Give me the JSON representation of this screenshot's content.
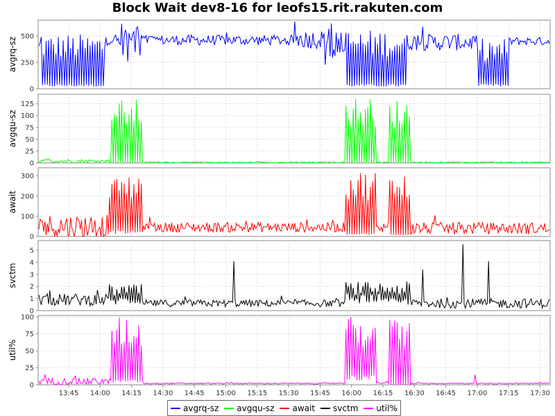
{
  "chart_data": {
    "type": "line",
    "title": "Block Wait dev8-16 for leofs15.rit.rakuten.com",
    "x_tick_labels": [
      "13:45",
      "14:00",
      "14:15",
      "14:30",
      "14:45",
      "15:00",
      "15:15",
      "15:30",
      "15:45",
      "16:00",
      "16:15",
      "16:30",
      "16:45",
      "17:00",
      "17:15",
      "17:30"
    ],
    "grid": true,
    "legend_position": "bottom",
    "panels": [
      {
        "name": "avgrq-sz",
        "ylabel": "avgrq-sz",
        "color": "#0000ff",
        "yticks": [
          0,
          250,
          500
        ],
        "ylim": [
          0,
          650
        ],
        "profile": [
          [
            0,
            0,
            "burst",
            [
              30,
              480
            ]
          ],
          [
            0.005,
            0.13,
            "burst",
            [
              30,
              520
            ]
          ],
          [
            0.135,
            0.155,
            "base",
            [
              460,
              40
            ]
          ],
          [
            0.155,
            0.205,
            "burst",
            [
              420,
              630
            ]
          ],
          [
            0.205,
            0.5,
            "base",
            [
              460,
              50
            ]
          ],
          [
            0.5,
            0.56,
            "base",
            [
              470,
              90
            ]
          ],
          [
            0.56,
            0.6,
            "burst",
            [
              350,
              630
            ]
          ],
          [
            0.6,
            0.72,
            "burst",
            [
              30,
              560
            ]
          ],
          [
            0.72,
            0.86,
            "base",
            [
              440,
              80
            ]
          ],
          [
            0.86,
            0.92,
            "burst",
            [
              30,
              480
            ]
          ],
          [
            0.92,
            1,
            "base",
            [
              450,
              40
            ]
          ]
        ]
      },
      {
        "name": "avgqu-sz",
        "ylabel": "avgqu-sz",
        "color": "#00ff00",
        "yticks": [
          0,
          25,
          50,
          75,
          100,
          125
        ],
        "ylim": [
          0,
          145
        ],
        "profile": [
          [
            0,
            0.14,
            "base",
            [
              4,
              4
            ]
          ],
          [
            0.14,
            0.205,
            "burst",
            [
              0,
              135
            ]
          ],
          [
            0.205,
            0.6,
            "base",
            [
              1,
              1
            ]
          ],
          [
            0.6,
            0.66,
            "burst",
            [
              0,
              140
            ]
          ],
          [
            0.66,
            0.685,
            "base",
            [
              1,
              1
            ]
          ],
          [
            0.685,
            0.73,
            "burst",
            [
              0,
              135
            ]
          ],
          [
            0.73,
            1,
            "base",
            [
              1,
              1
            ]
          ]
        ]
      },
      {
        "name": "await",
        "ylabel": "await",
        "color": "#ff0000",
        "yticks": [
          0,
          100,
          200,
          300
        ],
        "ylim": [
          0,
          340
        ],
        "profile": [
          [
            0,
            0.135,
            "base",
            [
              50,
              60
            ]
          ],
          [
            0.135,
            0.205,
            "burst",
            [
              20,
              310
            ]
          ],
          [
            0.205,
            0.6,
            "base",
            [
              45,
              25
            ]
          ],
          [
            0.6,
            0.66,
            "burst",
            [
              10,
              330
            ]
          ],
          [
            0.66,
            0.685,
            "base",
            [
              40,
              30
            ]
          ],
          [
            0.685,
            0.73,
            "burst",
            [
              10,
              310
            ]
          ],
          [
            0.73,
            1,
            "base",
            [
              40,
              30
            ]
          ]
        ]
      },
      {
        "name": "svctm",
        "ylabel": "svctm",
        "color": "#000000",
        "yticks": [
          0,
          1,
          2,
          3,
          4,
          5
        ],
        "ylim": [
          0,
          5.8
        ],
        "profile": [
          [
            0,
            0.135,
            "base",
            [
              0.9,
              0.5
            ]
          ],
          [
            0.135,
            0.205,
            "burst",
            [
              0.8,
              2.2
            ]
          ],
          [
            0.205,
            0.6,
            "base",
            [
              0.6,
              0.3
            ]
          ],
          [
            0.6,
            0.67,
            "burst",
            [
              1,
              2.4
            ]
          ],
          [
            0.67,
            0.73,
            "burst",
            [
              0.7,
              2.4
            ]
          ],
          [
            0.73,
            1,
            "base",
            [
              0.6,
              0.4
            ]
          ]
        ],
        "spikes": [
          [
            0.382,
            4.1
          ],
          [
            0.752,
            3.4
          ],
          [
            0.83,
            5.5
          ],
          [
            0.88,
            4.1
          ]
        ]
      },
      {
        "name": "util%",
        "ylabel": "util%",
        "color": "#ff00ff",
        "yticks": [
          0,
          25,
          50,
          75,
          100
        ],
        "ylim": [
          0,
          102
        ],
        "profile": [
          [
            0,
            0.14,
            "base",
            [
              5,
              5
            ]
          ],
          [
            0.14,
            0.205,
            "burst",
            [
              5,
              100
            ]
          ],
          [
            0.205,
            0.6,
            "base",
            [
              2,
              1
            ]
          ],
          [
            0.6,
            0.66,
            "burst",
            [
              10,
              100
            ]
          ],
          [
            0.66,
            0.685,
            "base",
            [
              3,
              2
            ]
          ],
          [
            0.685,
            0.73,
            "burst",
            [
              0,
              100
            ]
          ],
          [
            0.73,
            1,
            "base",
            [
              2,
              1
            ]
          ]
        ],
        "spikes": [
          [
            0.855,
            15
          ]
        ]
      }
    ]
  }
}
